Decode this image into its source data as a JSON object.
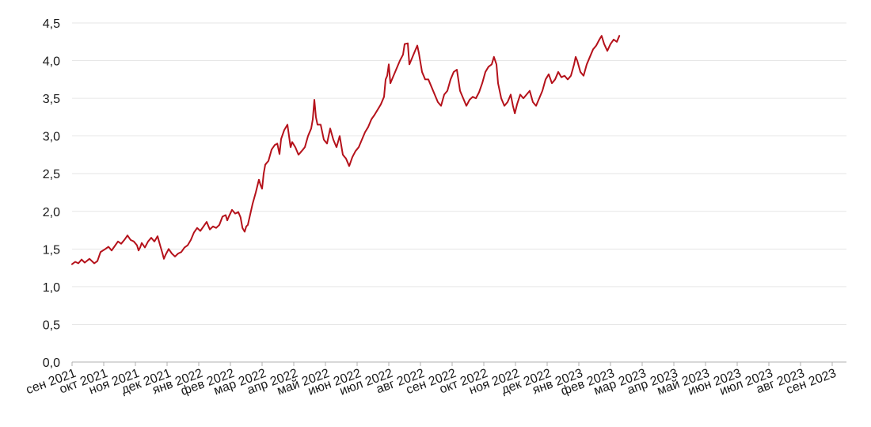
{
  "chart_data": {
    "type": "line",
    "title": "",
    "xlabel": "",
    "ylabel": "",
    "ylim": [
      0,
      4.5
    ],
    "y_ticks": [
      "0,0",
      "0,5",
      "1,0",
      "1,5",
      "2,0",
      "2,5",
      "3,0",
      "3,5",
      "4,0",
      "4,5"
    ],
    "x_ticks": [
      "сен 2021",
      "окт 2021",
      "ноя 2021",
      "дек 2021",
      "янв 2022",
      "фев 2022",
      "мар 2022",
      "апр 2022",
      "май 2022",
      "июн 2022",
      "июл 2022",
      "авг 2022",
      "сен 2022",
      "окт 2022",
      "ноя 2022",
      "дек 2022",
      "янв 2023",
      "фев 2023",
      "мар 2023",
      "апр 2023",
      "май 2023",
      "июн 2023",
      "июл 2023",
      "авг 2023",
      "сен 2023"
    ],
    "grid": true,
    "line_color": "#b5121b",
    "series": [
      {
        "values": [
          [
            0.0,
            1.3
          ],
          [
            0.1,
            1.33
          ],
          [
            0.2,
            1.31
          ],
          [
            0.3,
            1.36
          ],
          [
            0.4,
            1.32
          ],
          [
            0.55,
            1.37
          ],
          [
            0.7,
            1.31
          ],
          [
            0.8,
            1.34
          ],
          [
            0.9,
            1.46
          ],
          [
            1.05,
            1.5
          ],
          [
            1.15,
            1.53
          ],
          [
            1.25,
            1.48
          ],
          [
            1.35,
            1.54
          ],
          [
            1.45,
            1.6
          ],
          [
            1.55,
            1.57
          ],
          [
            1.65,
            1.62
          ],
          [
            1.75,
            1.68
          ],
          [
            1.85,
            1.62
          ],
          [
            1.95,
            1.6
          ],
          [
            2.05,
            1.55
          ],
          [
            2.1,
            1.48
          ],
          [
            2.15,
            1.52
          ],
          [
            2.2,
            1.58
          ],
          [
            2.3,
            1.52
          ],
          [
            2.4,
            1.6
          ],
          [
            2.5,
            1.65
          ],
          [
            2.6,
            1.6
          ],
          [
            2.7,
            1.67
          ],
          [
            2.78,
            1.55
          ],
          [
            2.85,
            1.45
          ],
          [
            2.9,
            1.37
          ],
          [
            2.95,
            1.42
          ],
          [
            3.05,
            1.5
          ],
          [
            3.15,
            1.44
          ],
          [
            3.25,
            1.4
          ],
          [
            3.35,
            1.44
          ],
          [
            3.45,
            1.46
          ],
          [
            3.55,
            1.52
          ],
          [
            3.65,
            1.55
          ],
          [
            3.75,
            1.62
          ],
          [
            3.85,
            1.72
          ],
          [
            3.95,
            1.78
          ],
          [
            4.05,
            1.74
          ],
          [
            4.15,
            1.8
          ],
          [
            4.25,
            1.86
          ],
          [
            4.35,
            1.76
          ],
          [
            4.45,
            1.8
          ],
          [
            4.55,
            1.78
          ],
          [
            4.65,
            1.82
          ],
          [
            4.75,
            1.93
          ],
          [
            4.85,
            1.95
          ],
          [
            4.9,
            1.88
          ],
          [
            4.95,
            1.93
          ],
          [
            5.05,
            2.02
          ],
          [
            5.15,
            1.97
          ],
          [
            5.25,
            1.99
          ],
          [
            5.32,
            1.92
          ],
          [
            5.38,
            1.78
          ],
          [
            5.45,
            1.73
          ],
          [
            5.5,
            1.8
          ],
          [
            5.55,
            1.82
          ],
          [
            5.62,
            1.95
          ],
          [
            5.7,
            2.1
          ],
          [
            5.8,
            2.25
          ],
          [
            5.9,
            2.42
          ],
          [
            5.95,
            2.35
          ],
          [
            6.0,
            2.3
          ],
          [
            6.05,
            2.5
          ],
          [
            6.1,
            2.62
          ],
          [
            6.2,
            2.67
          ],
          [
            6.3,
            2.82
          ],
          [
            6.4,
            2.88
          ],
          [
            6.48,
            2.9
          ],
          [
            6.55,
            2.76
          ],
          [
            6.6,
            2.96
          ],
          [
            6.7,
            3.08
          ],
          [
            6.8,
            3.15
          ],
          [
            6.85,
            3.0
          ],
          [
            6.9,
            2.85
          ],
          [
            6.95,
            2.92
          ],
          [
            7.05,
            2.85
          ],
          [
            7.15,
            2.75
          ],
          [
            7.25,
            2.8
          ],
          [
            7.35,
            2.85
          ],
          [
            7.45,
            3.0
          ],
          [
            7.55,
            3.1
          ],
          [
            7.6,
            3.22
          ],
          [
            7.65,
            3.48
          ],
          [
            7.7,
            3.25
          ],
          [
            7.75,
            3.15
          ],
          [
            7.85,
            3.15
          ],
          [
            7.95,
            2.95
          ],
          [
            8.05,
            2.9
          ],
          [
            8.15,
            3.1
          ],
          [
            8.25,
            2.95
          ],
          [
            8.35,
            2.85
          ],
          [
            8.45,
            3.0
          ],
          [
            8.55,
            2.75
          ],
          [
            8.65,
            2.7
          ],
          [
            8.75,
            2.6
          ],
          [
            8.85,
            2.72
          ],
          [
            8.95,
            2.8
          ],
          [
            9.05,
            2.85
          ],
          [
            9.15,
            2.95
          ],
          [
            9.25,
            3.05
          ],
          [
            9.35,
            3.12
          ],
          [
            9.45,
            3.22
          ],
          [
            9.55,
            3.28
          ],
          [
            9.65,
            3.35
          ],
          [
            9.75,
            3.42
          ],
          [
            9.85,
            3.52
          ],
          [
            9.9,
            3.75
          ],
          [
            9.95,
            3.8
          ],
          [
            10.0,
            3.95
          ],
          [
            10.05,
            3.7
          ],
          [
            10.15,
            3.8
          ],
          [
            10.25,
            3.9
          ],
          [
            10.35,
            4.0
          ],
          [
            10.45,
            4.08
          ],
          [
            10.5,
            4.22
          ],
          [
            10.6,
            4.23
          ],
          [
            10.65,
            3.95
          ],
          [
            10.7,
            4.0
          ],
          [
            10.8,
            4.1
          ],
          [
            10.9,
            4.2
          ],
          [
            10.95,
            4.1
          ],
          [
            11.05,
            3.85
          ],
          [
            11.15,
            3.75
          ],
          [
            11.25,
            3.75
          ],
          [
            11.35,
            3.65
          ],
          [
            11.45,
            3.55
          ],
          [
            11.55,
            3.45
          ],
          [
            11.65,
            3.4
          ],
          [
            11.75,
            3.55
          ],
          [
            11.85,
            3.6
          ],
          [
            11.95,
            3.75
          ],
          [
            12.05,
            3.85
          ],
          [
            12.15,
            3.88
          ],
          [
            12.25,
            3.6
          ],
          [
            12.35,
            3.5
          ],
          [
            12.45,
            3.4
          ],
          [
            12.55,
            3.48
          ],
          [
            12.65,
            3.52
          ],
          [
            12.75,
            3.5
          ],
          [
            12.85,
            3.58
          ],
          [
            12.95,
            3.7
          ],
          [
            13.05,
            3.85
          ],
          [
            13.15,
            3.92
          ],
          [
            13.25,
            3.95
          ],
          [
            13.32,
            4.05
          ],
          [
            13.4,
            3.95
          ],
          [
            13.45,
            3.7
          ],
          [
            13.55,
            3.5
          ],
          [
            13.65,
            3.4
          ],
          [
            13.75,
            3.45
          ],
          [
            13.85,
            3.55
          ],
          [
            13.92,
            3.4
          ],
          [
            13.98,
            3.3
          ],
          [
            14.05,
            3.42
          ],
          [
            14.15,
            3.55
          ],
          [
            14.25,
            3.5
          ],
          [
            14.35,
            3.55
          ],
          [
            14.45,
            3.6
          ],
          [
            14.55,
            3.45
          ],
          [
            14.65,
            3.4
          ],
          [
            14.75,
            3.5
          ],
          [
            14.85,
            3.6
          ],
          [
            14.95,
            3.75
          ],
          [
            15.05,
            3.82
          ],
          [
            15.15,
            3.7
          ],
          [
            15.25,
            3.75
          ],
          [
            15.35,
            3.85
          ],
          [
            15.45,
            3.78
          ],
          [
            15.55,
            3.8
          ],
          [
            15.65,
            3.75
          ],
          [
            15.75,
            3.8
          ],
          [
            15.85,
            3.95
          ],
          [
            15.9,
            4.05
          ],
          [
            15.95,
            4.0
          ],
          [
            16.05,
            3.85
          ],
          [
            16.15,
            3.8
          ],
          [
            16.25,
            3.95
          ],
          [
            16.35,
            4.05
          ],
          [
            16.45,
            4.15
          ],
          [
            16.55,
            4.2
          ],
          [
            16.65,
            4.28
          ],
          [
            16.72,
            4.33
          ],
          [
            16.8,
            4.22
          ],
          [
            16.9,
            4.13
          ],
          [
            17.0,
            4.22
          ],
          [
            17.1,
            4.28
          ],
          [
            17.2,
            4.25
          ],
          [
            17.28,
            4.33
          ]
        ]
      }
    ]
  }
}
